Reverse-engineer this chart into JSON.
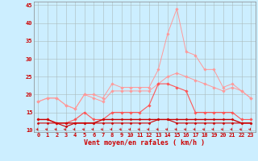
{
  "xlabel": "Vent moyen/en rafales ( km/h )",
  "bg_color": "#cceeff",
  "grid_color": "#aabbbb",
  "x": [
    0,
    1,
    2,
    3,
    4,
    5,
    6,
    7,
    8,
    9,
    10,
    11,
    12,
    13,
    14,
    15,
    16,
    17,
    18,
    19,
    20,
    21,
    22,
    23
  ],
  "series": [
    {
      "name": "light_pink_gust_top",
      "color": "#ff9999",
      "linewidth": 0.7,
      "marker": "D",
      "markersize": 1.8,
      "values": [
        18,
        19,
        19,
        17,
        16,
        20,
        20,
        19,
        23,
        22,
        22,
        22,
        22,
        27,
        37,
        44,
        32,
        31,
        27,
        27,
        22,
        23,
        21,
        19
      ]
    },
    {
      "name": "light_pink_mean",
      "color": "#ff9999",
      "linewidth": 0.7,
      "marker": "D",
      "markersize": 1.8,
      "values": [
        18,
        19,
        19,
        17,
        16,
        20,
        19,
        18,
        21,
        21,
        21,
        21,
        21,
        23,
        25,
        26,
        25,
        24,
        23,
        22,
        21,
        22,
        21,
        19
      ]
    },
    {
      "name": "medium_red_upper",
      "color": "#ff5555",
      "linewidth": 0.8,
      "marker": "D",
      "markersize": 1.8,
      "values": [
        13,
        13,
        12,
        12,
        13,
        15,
        13,
        13,
        15,
        15,
        15,
        15,
        17,
        23,
        23,
        22,
        21,
        15,
        15,
        15,
        15,
        15,
        13,
        13
      ]
    },
    {
      "name": "dark_red_flat",
      "color": "#cc0000",
      "linewidth": 1.0,
      "marker": "D",
      "markersize": 1.5,
      "values": [
        13,
        13,
        12,
        12,
        12,
        12,
        12,
        13,
        13,
        13,
        13,
        13,
        13,
        13,
        13,
        13,
        13,
        13,
        13,
        13,
        13,
        13,
        12,
        12
      ]
    },
    {
      "name": "dark_red_low",
      "color": "#cc0000",
      "linewidth": 0.8,
      "marker": "D",
      "markersize": 1.5,
      "values": [
        12,
        12,
        12,
        11,
        12,
        12,
        12,
        12,
        12,
        12,
        12,
        12,
        12,
        13,
        13,
        12,
        12,
        12,
        12,
        12,
        12,
        12,
        12,
        12
      ]
    }
  ],
  "ylim": [
    9.5,
    46
  ],
  "yticks": [
    10,
    15,
    20,
    25,
    30,
    35,
    40,
    45
  ],
  "xlim": [
    -0.5,
    23.5
  ],
  "tick_fontsize": 5.0,
  "xlabel_fontsize": 6.0
}
